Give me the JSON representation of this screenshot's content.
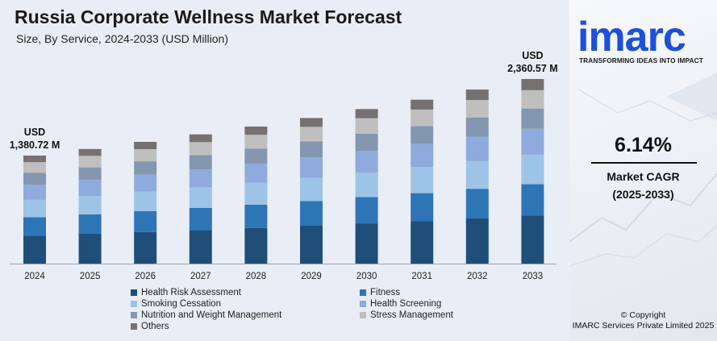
{
  "header": {
    "title": "Russia Corporate Wellness Market Forecast",
    "subtitle": "Size, By Service, 2024-2033 (USD Million)"
  },
  "annotations": {
    "start_unit": "USD",
    "start_value": "1,380.72 M",
    "end_unit": "USD",
    "end_value": "2,360.57 M"
  },
  "sidebar": {
    "logo_text": "imarc",
    "logo_tagline": "TRANSFORMING IDEAS INTO IMPACT",
    "cagr_value": "6.14%",
    "cagr_label": "Market CAGR",
    "cagr_period": "(2025-2033)",
    "copyright_line1": "© Copyright",
    "copyright_line2": "IMARC Services Private Limited 2025"
  },
  "chart_data": {
    "type": "bar",
    "stacked": true,
    "title": "Russia Corporate Wellness Market Forecast",
    "subtitle": "Size, By Service, 2024-2033 (USD Million)",
    "categories": [
      "2024",
      "2025",
      "2026",
      "2027",
      "2028",
      "2029",
      "2030",
      "2031",
      "2032",
      "2033"
    ],
    "totals": [
      1380.72,
      1466,
      1556,
      1652,
      1753,
      1861,
      1975,
      2096,
      2225,
      2360.57
    ],
    "series": [
      {
        "name": "Health Risk Assessment",
        "color": "#1f4e79",
        "values": [
          359,
          381,
          405,
          430,
          456,
          484,
          514,
          545,
          579,
          614
        ]
      },
      {
        "name": "Fitness",
        "color": "#2e75b6",
        "values": [
          235,
          249,
          265,
          281,
          298,
          316,
          336,
          356,
          378,
          401
        ]
      },
      {
        "name": "Smoking Cessation",
        "color": "#9dc3e6",
        "values": [
          221,
          235,
          249,
          264,
          280,
          298,
          316,
          335,
          356,
          378
        ]
      },
      {
        "name": "Health Screening",
        "color": "#8faadc",
        "values": [
          193,
          205,
          218,
          231,
          245,
          261,
          277,
          293,
          311,
          330
        ]
      },
      {
        "name": "Nutrition and Weight Management",
        "color": "#8497b0",
        "values": [
          152,
          161,
          171,
          182,
          193,
          205,
          217,
          231,
          245,
          260
        ]
      },
      {
        "name": "Stress Management",
        "color": "#bfbfbf",
        "values": [
          138,
          147,
          156,
          165,
          175,
          186,
          198,
          210,
          223,
          236
        ]
      },
      {
        "name": "Others",
        "color": "#767171",
        "values": [
          83,
          88,
          93,
          99,
          105,
          112,
          118,
          126,
          134,
          142
        ]
      }
    ],
    "legend_position": "bottom",
    "grid": false
  }
}
